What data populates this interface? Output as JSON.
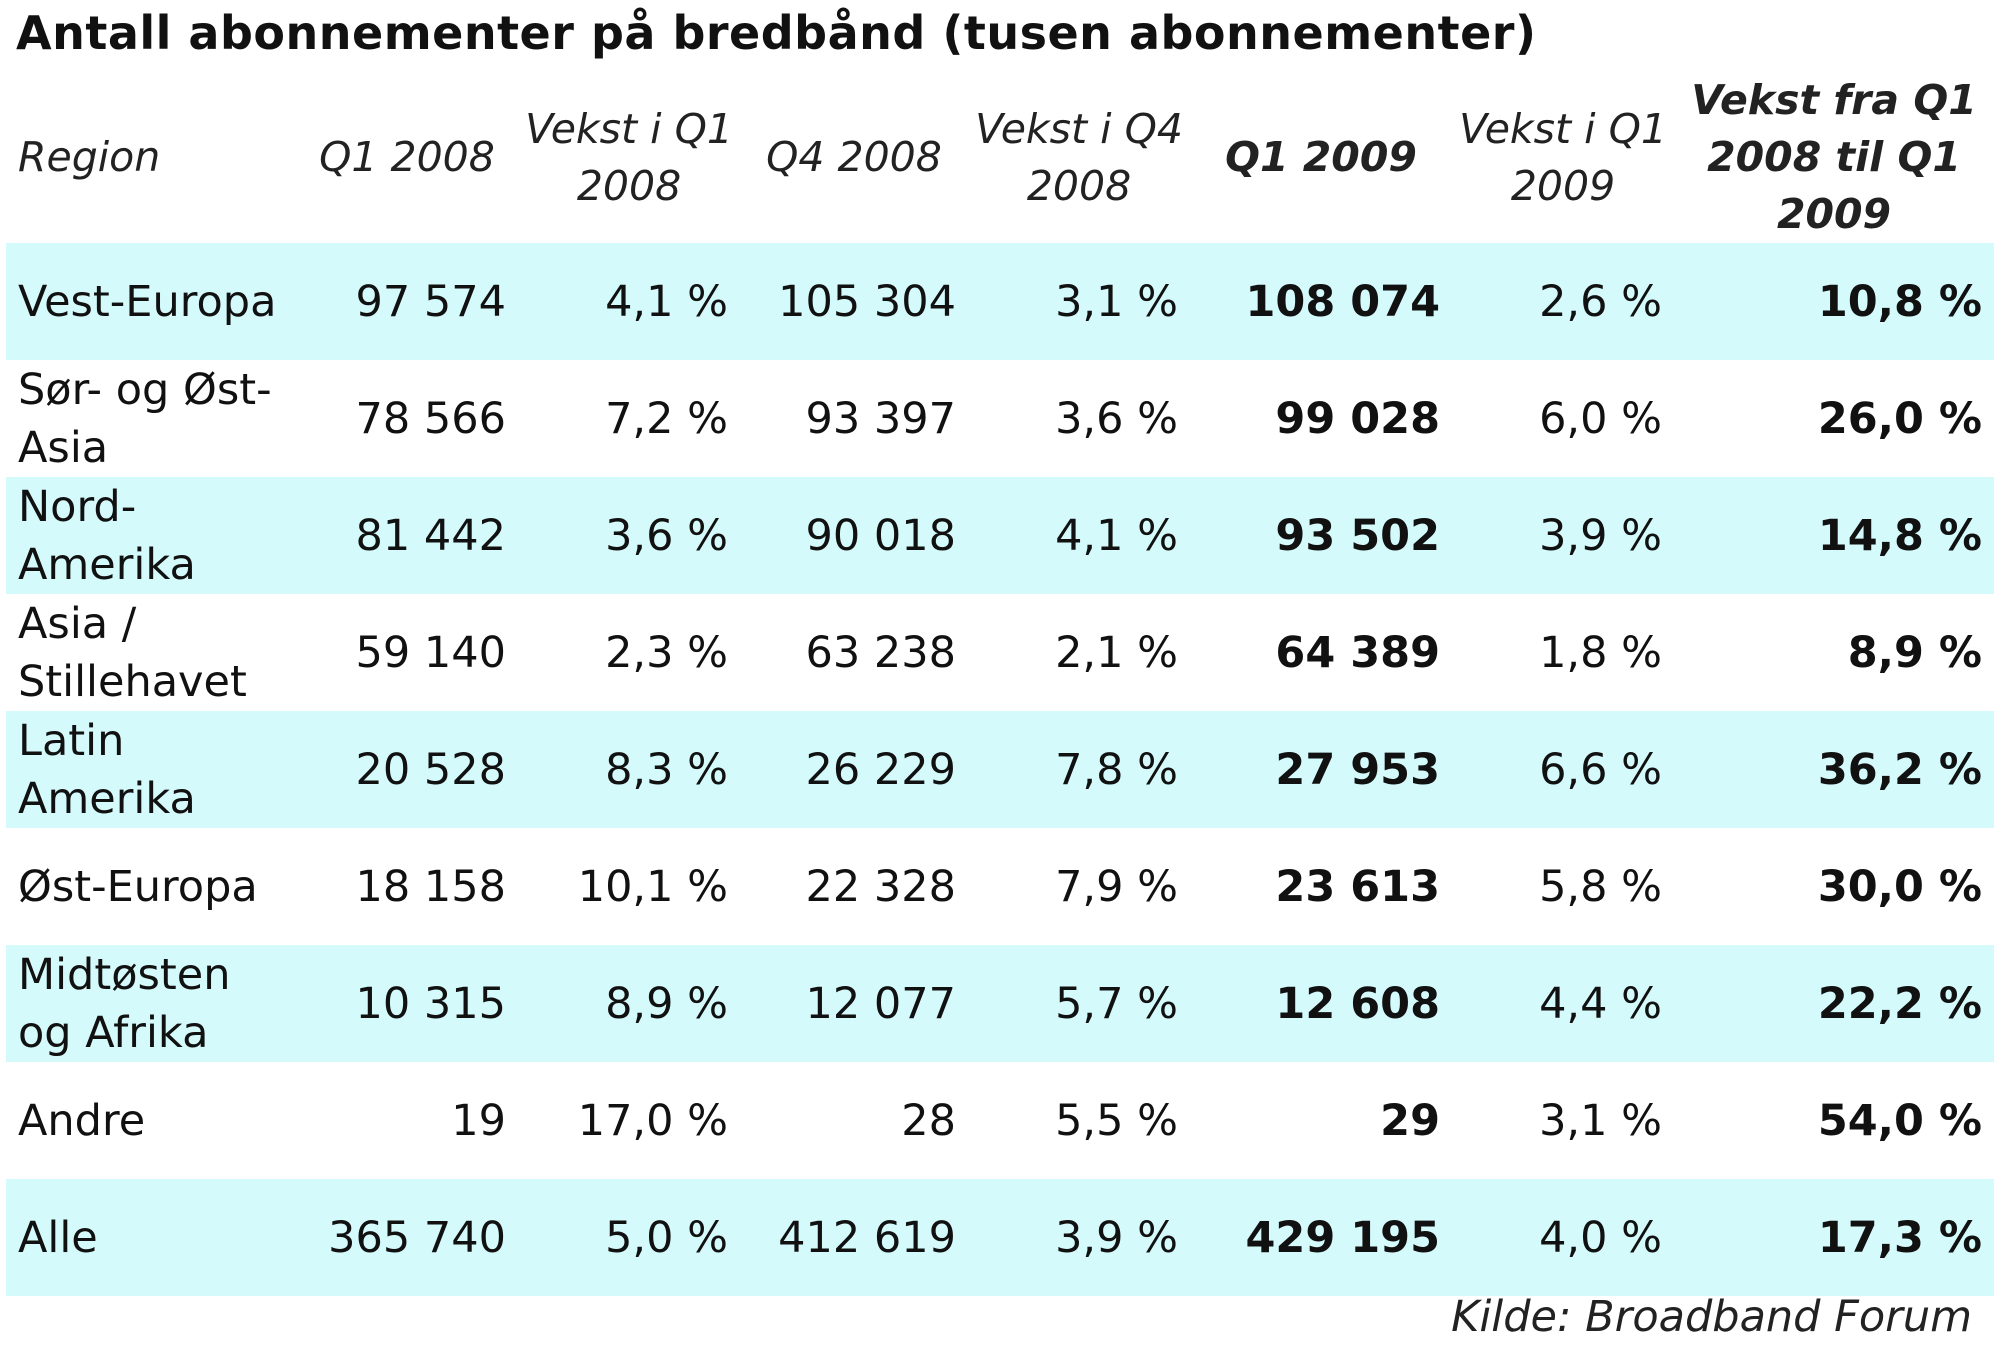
{
  "title": "Antall abonnementer på bredbånd (tusen abonnementer)",
  "headers": {
    "region": "Region",
    "q1_2008": "Q1 2008",
    "growth_q1_2008": "Vekst i Q1 2008",
    "q4_2008": "Q4 2008",
    "growth_q4_2008": "Vekst i Q4 2008",
    "q1_2009": "Q1 2009",
    "growth_q1_2009": "Vekst i Q1 2009",
    "growth_total": "Vekst fra Q1 2008 til Q1 2009"
  },
  "rows": [
    {
      "region": "Vest-Europa",
      "q1_2008": "97 574",
      "growth_q1_2008": "4,1 %",
      "q4_2008": "105 304",
      "growth_q4_2008": "3,1 %",
      "q1_2009": "108 074",
      "growth_q1_2009": "2,6 %",
      "growth_total": "10,8 %"
    },
    {
      "region": "Sør- og Øst-Asia",
      "q1_2008": "78 566",
      "growth_q1_2008": "7,2 %",
      "q4_2008": "93 397",
      "growth_q4_2008": "3,6 %",
      "q1_2009": "99 028",
      "growth_q1_2009": "6,0 %",
      "growth_total": "26,0 %"
    },
    {
      "region": "Nord-Amerika",
      "q1_2008": "81 442",
      "growth_q1_2008": "3,6 %",
      "q4_2008": "90 018",
      "growth_q4_2008": "4,1 %",
      "q1_2009": "93 502",
      "growth_q1_2009": "3,9 %",
      "growth_total": "14,8 %"
    },
    {
      "region": "Asia / Stillehavet",
      "q1_2008": "59 140",
      "growth_q1_2008": "2,3 %",
      "q4_2008": "63 238",
      "growth_q4_2008": "2,1 %",
      "q1_2009": "64 389",
      "growth_q1_2009": "1,8 %",
      "growth_total": "8,9 %"
    },
    {
      "region": "Latin Amerika",
      "q1_2008": "20 528",
      "growth_q1_2008": "8,3 %",
      "q4_2008": "26 229",
      "growth_q4_2008": "7,8 %",
      "q1_2009": "27 953",
      "growth_q1_2009": "6,6 %",
      "growth_total": "36,2 %"
    },
    {
      "region": "Øst-Europa",
      "q1_2008": "18 158",
      "growth_q1_2008": "10,1 %",
      "q4_2008": "22 328",
      "growth_q4_2008": "7,9 %",
      "q1_2009": "23 613",
      "growth_q1_2009": "5,8 %",
      "growth_total": "30,0 %"
    },
    {
      "region": "Midtøsten og Afrika",
      "q1_2008": "10 315",
      "growth_q1_2008": "8,9 %",
      "q4_2008": "12 077",
      "growth_q4_2008": "5,7 %",
      "q1_2009": "12 608",
      "growth_q1_2009": "4,4 %",
      "growth_total": "22,2 %"
    },
    {
      "region": "Andre",
      "q1_2008": "19",
      "growth_q1_2008": "17,0 %",
      "q4_2008": "28",
      "growth_q4_2008": "5,5 %",
      "q1_2009": "29",
      "growth_q1_2009": "3,1 %",
      "growth_total": "54,0 %"
    },
    {
      "region": "Alle",
      "q1_2008": "365 740",
      "growth_q1_2008": "5,0 %",
      "q4_2008": "412 619",
      "growth_q4_2008": "3,9 %",
      "q1_2009": "429 195",
      "growth_q1_2009": "4,0 %",
      "growth_total": "17,3 %"
    }
  ],
  "source": "Kilde: Broadband Forum",
  "colors": {
    "row_shade": "#d4fafc",
    "text": "#111111"
  }
}
